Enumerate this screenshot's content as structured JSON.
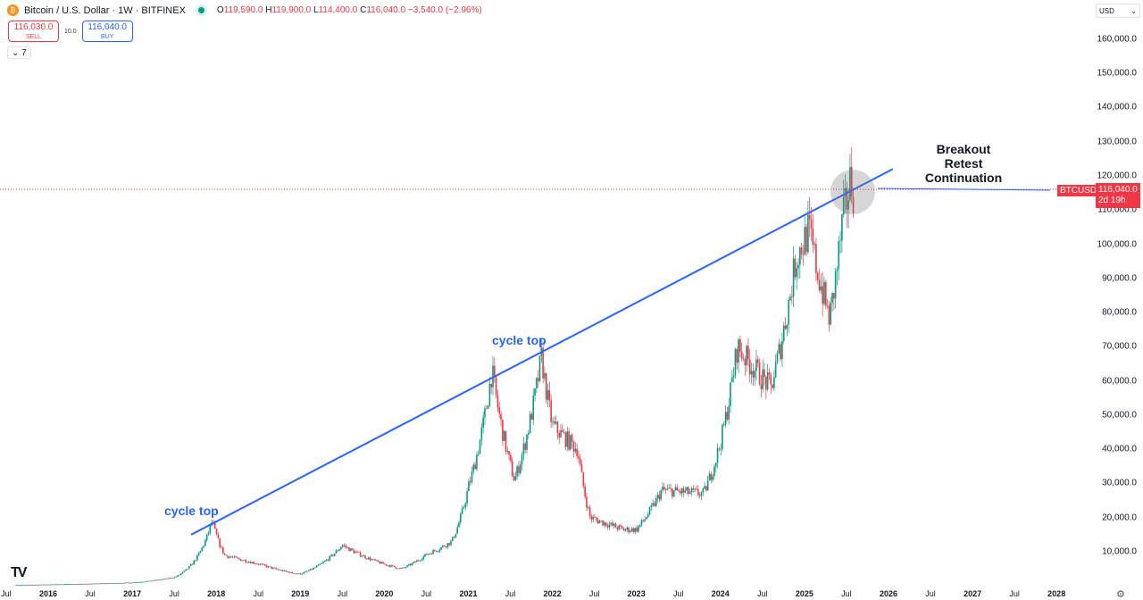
{
  "header": {
    "symbol_icon": "bitcoin-icon",
    "title": "Bitcoin / U.S. Dollar · 1W · BITFINEX",
    "ohlc": {
      "o_label": "O",
      "o": "119,590.0",
      "h_label": "H",
      "h": "119,900.0",
      "l_label": "L",
      "l": "114,400.0",
      "c_label": "C",
      "c": "116,040.0",
      "change": "−3,540.0 (−2.96%)"
    }
  },
  "trade": {
    "sell_price": "116,030.0",
    "sell_label": "SELL",
    "spread": "10.0",
    "buy_price": "116,040.0",
    "buy_label": "BUY"
  },
  "indicators_toggle": "7",
  "currency": "USD",
  "price_tag": {
    "symbol": "BTCUSD",
    "price": "116,040.0",
    "countdown": "2d 19h"
  },
  "annotations": {
    "breakout": "Breakout",
    "retest": "Retest",
    "continuation": "Continuation",
    "cycle_top_1": "cycle top",
    "cycle_top_2": "cycle top"
  },
  "colors": {
    "up": "#089981",
    "down": "#f23645",
    "trendline": "#2962ff"
  },
  "chart_data": {
    "type": "candlestick",
    "interval": "1W",
    "ylim": [
      0,
      165000
    ],
    "y_ticks": [
      "160,000.0",
      "150,000.0",
      "140,000.0",
      "130,000.0",
      "120,000.0",
      "110,000.0",
      "100,000.0",
      "90,000.0",
      "80,000.0",
      "70,000.0",
      "60,000.0",
      "50,000.0",
      "40,000.0",
      "30,000.0",
      "20,000.0",
      "10,000.0"
    ],
    "x_ticks": [
      "Jul",
      "2016",
      "Jul",
      "2017",
      "Jul",
      "2018",
      "Jul",
      "2019",
      "Jul",
      "2020",
      "Jul",
      "2021",
      "Jul",
      "2022",
      "Jul",
      "2023",
      "Jul",
      "2024",
      "Jul",
      "2025",
      "Jul",
      "2026",
      "Jul",
      "2027",
      "Jul",
      "2028"
    ],
    "price_path": [
      [
        2015.6,
        280
      ],
      [
        2016.0,
        430
      ],
      [
        2016.5,
        650
      ],
      [
        2017.0,
        1000
      ],
      [
        2017.5,
        2500
      ],
      [
        2017.95,
        19000
      ],
      [
        2018.1,
        9000
      ],
      [
        2018.5,
        6500
      ],
      [
        2018.9,
        3800
      ],
      [
        2019.0,
        3500
      ],
      [
        2019.5,
        12000
      ],
      [
        2019.9,
        7200
      ],
      [
        2020.2,
        5000
      ],
      [
        2020.5,
        9200
      ],
      [
        2020.8,
        13000
      ],
      [
        2021.0,
        29000
      ],
      [
        2021.28,
        63000
      ],
      [
        2021.55,
        31000
      ],
      [
        2021.87,
        67000
      ],
      [
        2022.0,
        47000
      ],
      [
        2022.3,
        40000
      ],
      [
        2022.45,
        20000
      ],
      [
        2022.85,
        16500
      ],
      [
        2023.0,
        16500
      ],
      [
        2023.3,
        28000
      ],
      [
        2023.8,
        27000
      ],
      [
        2024.0,
        42000
      ],
      [
        2024.2,
        70000
      ],
      [
        2024.6,
        58000
      ],
      [
        2024.9,
        96000
      ],
      [
        2025.05,
        104000
      ],
      [
        2025.3,
        78000
      ],
      [
        2025.45,
        106000
      ],
      [
        2025.55,
        119000
      ],
      [
        2025.58,
        116040
      ]
    ],
    "trendline": [
      [
        2017.7,
        15000
      ],
      [
        2026.05,
        122000
      ]
    ],
    "last_price": 116040
  }
}
